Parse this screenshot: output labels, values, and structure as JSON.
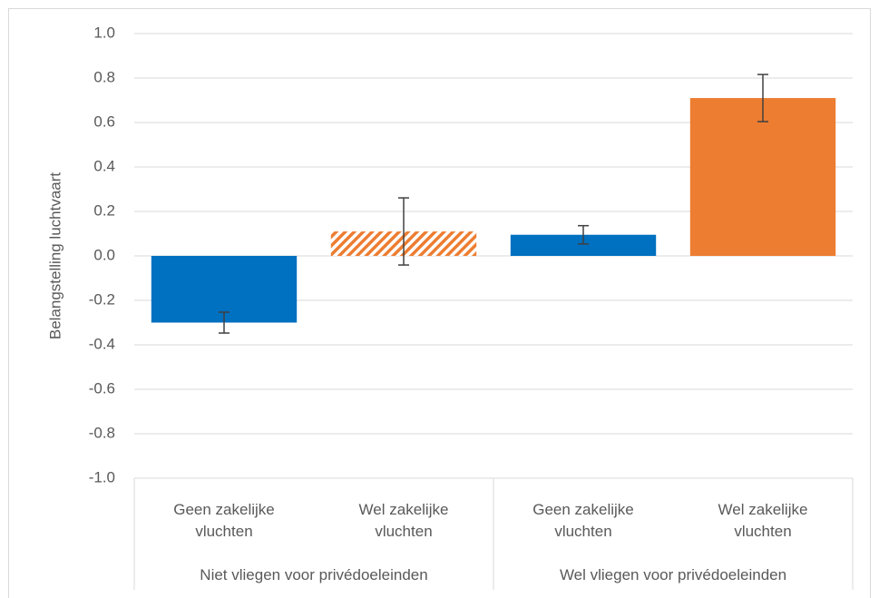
{
  "chart_data": {
    "type": "bar",
    "y_axis_label": "Belangstelling luchtvaart",
    "categories": [
      "Geen zakelijke vluchten",
      "Wel zakelijke vluchten",
      "Geen zakelijke vluchten",
      "Wel zakelijke vluchten"
    ],
    "groups": [
      "Niet vliegen voor privédoeleinden",
      "Wel vliegen voor privédoeleinden"
    ],
    "values": [
      -0.3,
      0.11,
      0.095,
      0.71
    ],
    "errors": [
      0.047,
      0.151,
      0.041,
      0.106
    ],
    "colors": [
      "#0070c0",
      "#ed7d31",
      "#0070c0",
      "#ed7d31"
    ],
    "hatched": [
      false,
      true,
      false,
      false
    ],
    "ylim": [
      -1.0,
      1.0
    ],
    "yticks": [
      {
        "value": -1.0,
        "label": "-1.0"
      },
      -0.8,
      -0.6,
      -0.4,
      -0.2,
      {
        "value": 0.0,
        "label": "0.0"
      },
      0.2,
      0.4,
      0.6,
      0.8,
      {
        "value": 1.0,
        "label": "1.0"
      }
    ],
    "grid": true
  }
}
